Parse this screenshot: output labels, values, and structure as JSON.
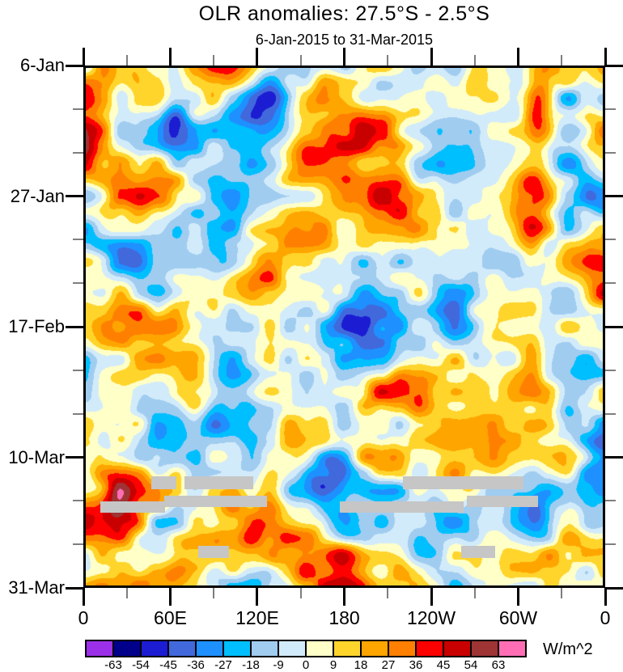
{
  "title": "OLR anomalies: 27.5°S - 2.5°S",
  "subtitle": "6-Jan-2015 to 31-Mar-2015",
  "axis_style": {
    "major_tick_color": "#000000",
    "minor_tick_color": "#7E7E7E",
    "frame_color": "#000000"
  },
  "y_axis": {
    "major_tick_labels": [
      "6-Jan",
      "27-Jan",
      "17-Feb",
      "10-Mar",
      "31-Mar"
    ],
    "major_fractions": [
      0,
      0.25,
      0.5,
      0.75,
      1
    ],
    "minor_fractions": [
      0.08333,
      0.16667,
      0.33333,
      0.41667,
      0.58333,
      0.66667,
      0.83333,
      0.91667
    ],
    "major_step_days": 21,
    "minor_step_days": 7
  },
  "x_axis": {
    "major_tick_labels": [
      "0",
      "60E",
      "120E",
      "180",
      "120W",
      "60W",
      "0"
    ],
    "major_fractions": [
      0,
      0.16667,
      0.33333,
      0.5,
      0.66667,
      0.83333,
      1
    ],
    "minor_fractions": [
      0.08333,
      0.25,
      0.41667,
      0.58333,
      0.75,
      0.91667
    ],
    "major_step_deg": 60,
    "minor_step_deg": 30
  },
  "colorbar": {
    "tick_labels": [
      "-63",
      "-54",
      "-45",
      "-36",
      "-27",
      "-18",
      "-9",
      "0",
      "9",
      "18",
      "27",
      "36",
      "45",
      "54",
      "63"
    ],
    "unit": "W/m^2"
  },
  "chart_data": {
    "type": "heatmap",
    "title": "OLR anomalies: 27.5°S - 2.5°S",
    "subtitle": "6-Jan-2015 to 31-Mar-2015",
    "xlabel": "",
    "ylabel": "",
    "x_tick_labels": [
      "0",
      "60E",
      "120E",
      "180",
      "120W",
      "60W",
      "0"
    ],
    "y_tick_labels": [
      "6-Jan",
      "27-Jan",
      "17-Feb",
      "10-Mar",
      "31-Mar"
    ],
    "units": "W/m^2",
    "levels": [
      -63,
      -54,
      -45,
      -36,
      -27,
      -18,
      -9,
      0,
      9,
      18,
      27,
      36,
      45,
      54,
      63
    ],
    "palette": [
      "#9B30E8",
      "#00008B",
      "#1C1CD2",
      "#4169DC",
      "#1E90FF",
      "#00BFFF",
      "#A0CCF0",
      "#D2EBFA",
      "#FFFFC8",
      "#FFD52C",
      "#FFA500",
      "#FF7F00",
      "#FF0000",
      "#C80000",
      "#9E3434",
      "#FF6EB4"
    ],
    "missing_color": "#C6C6C6",
    "missing_bars": [
      {
        "fx": 0.13,
        "fy": 0.786,
        "fw": 0.048,
        "fh": 0.025
      },
      {
        "fx": 0.194,
        "fy": 0.786,
        "fw": 0.132,
        "fh": 0.025
      },
      {
        "fx": 0.612,
        "fy": 0.786,
        "fw": 0.231,
        "fh": 0.025
      },
      {
        "fx": 0.155,
        "fy": 0.823,
        "fw": 0.197,
        "fh": 0.022
      },
      {
        "fx": 0.735,
        "fy": 0.823,
        "fw": 0.136,
        "fh": 0.022
      },
      {
        "fx": 0.033,
        "fy": 0.834,
        "fw": 0.124,
        "fh": 0.022
      },
      {
        "fx": 0.491,
        "fy": 0.834,
        "fw": 0.237,
        "fh": 0.022
      },
      {
        "fx": 0.22,
        "fy": 0.92,
        "fw": 0.059,
        "fh": 0.023
      },
      {
        "fx": 0.724,
        "fy": 0.92,
        "fw": 0.065,
        "fh": 0.023
      }
    ],
    "features": [
      {
        "x": 0.36,
        "y": 0.05,
        "sx": 0.045,
        "sy": 0.06,
        "a": -45
      },
      {
        "x": 0.88,
        "y": 0.07,
        "sx": 0.022,
        "sy": 0.06,
        "a": 55
      },
      {
        "x": 0.86,
        "y": 0.25,
        "sx": 0.025,
        "sy": 0.08,
        "a": 30
      },
      {
        "x": 0.17,
        "y": 0.12,
        "sx": 0.03,
        "sy": 0.04,
        "a": -40
      },
      {
        "x": 0.47,
        "y": 0.78,
        "sx": 0.035,
        "sy": 0.035,
        "a": -55
      },
      {
        "x": 0.42,
        "y": 0.93,
        "sx": 0.05,
        "sy": 0.04,
        "a": 48
      },
      {
        "x": 0.07,
        "y": 0.82,
        "sx": 0.035,
        "sy": 0.05,
        "a": 42
      },
      {
        "x": 0.87,
        "y": 0.84,
        "sx": 0.03,
        "sy": 0.05,
        "a": -42
      },
      {
        "x": 0.33,
        "y": 0.38,
        "sx": 0.04,
        "sy": 0.05,
        "a": 38
      },
      {
        "x": 0.56,
        "y": 0.44,
        "sx": 0.035,
        "sy": 0.05,
        "a": -38
      }
    ],
    "field": {
      "seed": 42,
      "bias": 5,
      "octaves": [
        {
          "nx": 7,
          "ny": 8,
          "amp": 30
        },
        {
          "nx": 14,
          "ny": 16,
          "amp": 24
        },
        {
          "nx": 28,
          "ny": 32,
          "amp": 14
        }
      ],
      "damp_bands": [
        {
          "c": 0.79,
          "s": 0.05,
          "f": 0.45
        }
      ]
    }
  }
}
